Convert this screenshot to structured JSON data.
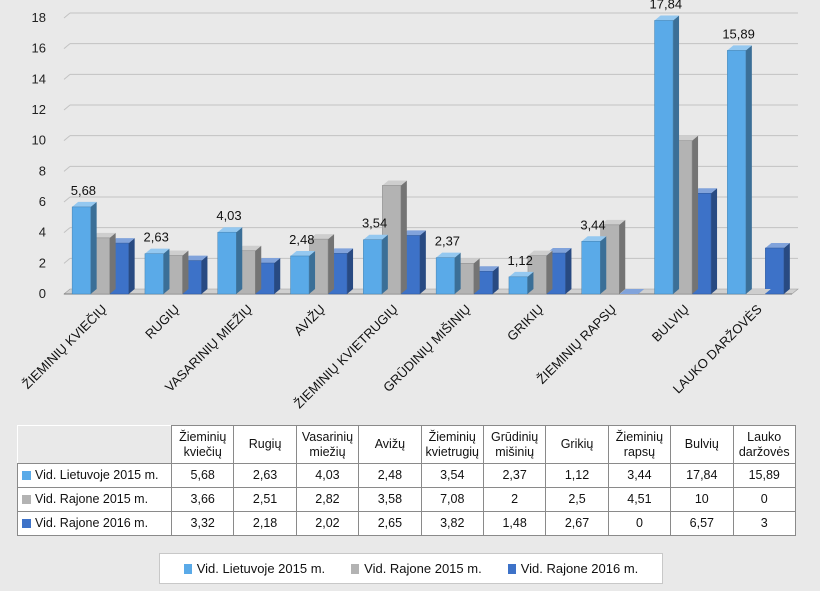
{
  "chart_data": {
    "type": "bar",
    "style": "3d-clustered-column",
    "categories_axis": [
      "ŽIEMINIŲ KVIEČIŲ",
      "RUGIŲ",
      "VASARINIŲ MIEŽIŲ",
      "AVIŽŲ",
      "ŽIEMINIŲ KVIETRUGIŲ",
      "GRŪDINIŲ MIŠINIŲ",
      "GRIKIŲ",
      "ŽIEMINIŲ RAPSŲ",
      "BULVIŲ",
      "LAUKO DARŽOVĖS"
    ],
    "categories_table": [
      "Žieminių kviečių",
      "Rugių",
      "Vasarinių miežių",
      "Avižų",
      "Žieminių kvietrugių",
      "Grūdinių mišinių",
      "Grikių",
      "Žieminių rapsų",
      "Bulvių",
      "Lauko daržovės"
    ],
    "series": [
      {
        "name": "Vid. Lietuvoje 2015 m.",
        "color": "#5aaae8",
        "values": [
          5.68,
          2.63,
          4.03,
          2.48,
          3.54,
          2.37,
          1.12,
          3.44,
          17.84,
          15.89
        ],
        "display": [
          "5,68",
          "2,63",
          "4,03",
          "2,48",
          "3,54",
          "2,37",
          "1,12",
          "3,44",
          "17,84",
          "15,89"
        ]
      },
      {
        "name": "Vid. Rajone 2015 m.",
        "color": "#b3b3b3",
        "values": [
          3.66,
          2.51,
          2.82,
          3.58,
          7.08,
          2,
          2.5,
          4.51,
          10,
          0
        ],
        "display": [
          "3,66",
          "2,51",
          "2,82",
          "3,58",
          "7,08",
          "2",
          "2,5",
          "4,51",
          "10",
          "0"
        ]
      },
      {
        "name": "Vid. Rajone 2016 m.",
        "color": "#3d72c8",
        "values": [
          3.32,
          2.18,
          2.02,
          2.65,
          3.82,
          1.48,
          2.67,
          0,
          6.57,
          3
        ],
        "display": [
          "3,32",
          "2,18",
          "2,02",
          "2,65",
          "3,82",
          "1,48",
          "2,67",
          "0",
          "6,57",
          "3"
        ]
      }
    ],
    "data_labels_series": 0,
    "ylim": [
      0,
      18
    ],
    "yticks": [
      0,
      2,
      4,
      6,
      8,
      10,
      12,
      14,
      16,
      18
    ],
    "grid": true,
    "legend_position": "bottom",
    "data_table": true
  }
}
